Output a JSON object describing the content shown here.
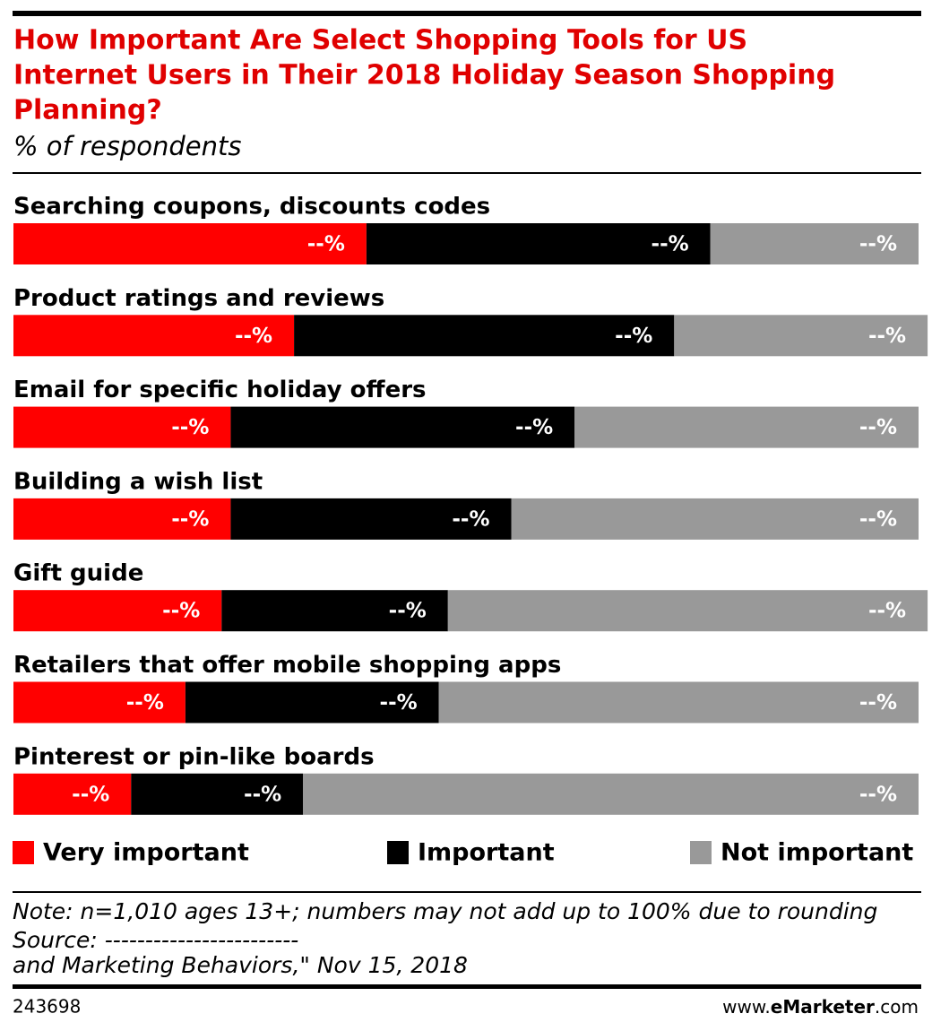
{
  "chart_data": {
    "type": "stacked-bar-horizontal",
    "title": [
      "How Important Are Select Shopping Tools for US",
      "Internet Users in Their 2018 Holiday Season Shopping",
      "Planning?"
    ],
    "subtitle": "% of respondents",
    "categories": [
      "Searching coupons, discounts codes",
      "Product ratings and reviews",
      "Email for specific holiday offers",
      "Building a wish list",
      "Gift guide",
      "Retailers that offer mobile shopping apps",
      "Pinterest or pin-like boards"
    ],
    "series": [
      {
        "name": "Very important",
        "color": "#ff0000",
        "values": [
          39,
          31,
          24,
          24,
          23,
          19,
          13
        ],
        "value_labels": [
          "--%",
          "--%",
          "--%",
          "--%",
          "--%",
          "--%",
          "--%"
        ]
      },
      {
        "name": "Important",
        "color": "#000000",
        "values": [
          38,
          42,
          38,
          31,
          25,
          28,
          19
        ],
        "value_labels": [
          "--%",
          "--%",
          "--%",
          "--%",
          "--%",
          "--%",
          "--%"
        ]
      },
      {
        "name": "Not important",
        "color": "#999999",
        "values": [
          23,
          28,
          38,
          45,
          53,
          53,
          68
        ],
        "value_labels": [
          "--%",
          "--%",
          "--%",
          "--%",
          "--%",
          "--%",
          "--%"
        ]
      }
    ],
    "xlim": [
      0,
      100
    ],
    "note": "Note: n=1,010 ages 13+; numbers may not add up to 100% due to rounding",
    "source": [
      "Source: ------------------------",
      "and Marketing Behaviors,\" Nov 15, 2018"
    ],
    "chart_id": "243698",
    "website": [
      "www.",
      "eMarketer",
      ".com"
    ]
  }
}
